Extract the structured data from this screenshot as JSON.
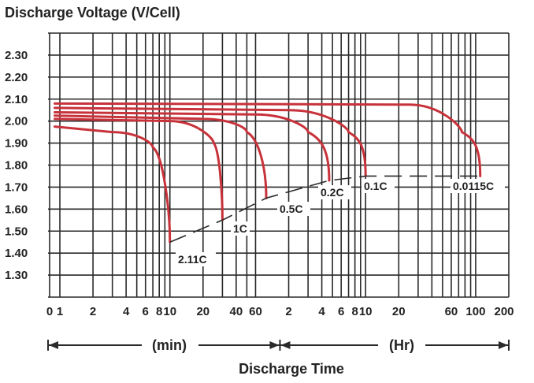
{
  "chart_data": {
    "type": "line",
    "title": "Discharge Voltage (V/Cell)",
    "xlabel": "Discharge Time",
    "ylim": [
      1.2,
      2.4
    ],
    "y_ticks": [
      "2.30",
      "2.20",
      "2.10",
      "2.00",
      "1.90",
      "1.80",
      "1.70",
      "1.60",
      "1.50",
      "1.40",
      "1.30"
    ],
    "x_ticks_min": [
      "0",
      "1",
      "2",
      "4",
      "6",
      "8",
      "10",
      "20",
      "40",
      "60"
    ],
    "x_ticks_hr": [
      "2",
      "4",
      "6",
      "8",
      "10",
      "20",
      "60",
      "100",
      "200"
    ],
    "x_unit_min": "(min)",
    "x_unit_hr": "(Hr)",
    "grid": true,
    "series": [
      {
        "name": "2.11C",
        "x_min": [
          0.5,
          3,
          7,
          10
        ],
        "values": [
          1.975,
          1.95,
          1.88,
          1.45
        ]
      },
      {
        "name": "1C",
        "x_min": [
          0.5,
          10,
          25,
          30
        ],
        "values": [
          2.01,
          2.0,
          1.9,
          1.55
        ]
      },
      {
        "name": "0.5C",
        "x_min": [
          0.5,
          20,
          50,
          75
        ],
        "values": [
          2.025,
          2.01,
          1.95,
          1.65
        ]
      },
      {
        "name": "0.2C",
        "x_min": [
          0.5,
          60,
          180,
          280
        ],
        "values": [
          2.04,
          2.03,
          1.95,
          1.73
        ]
      },
      {
        "name": "0.1C",
        "x_min": [
          0.5,
          120,
          420,
          600
        ],
        "values": [
          2.06,
          2.05,
          1.95,
          1.75
        ]
      },
      {
        "name": "0.0115C",
        "x_min": [
          0.5,
          1500,
          4500,
          6600
        ],
        "values": [
          2.08,
          2.075,
          1.95,
          1.75
        ]
      }
    ]
  }
}
